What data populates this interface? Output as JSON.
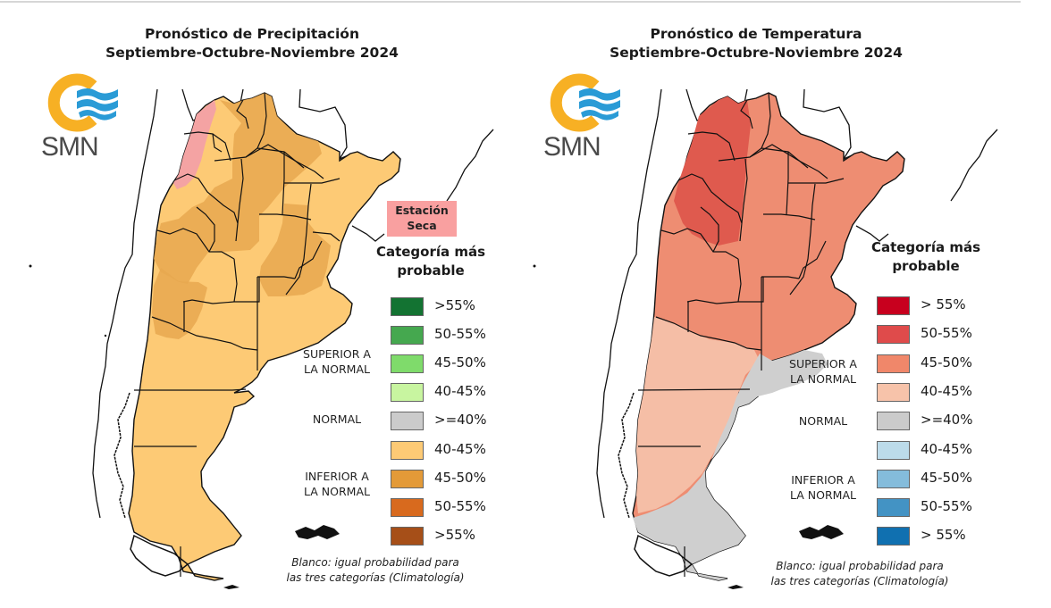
{
  "precipitation": {
    "title_line1": "Pronóstico de Precipitación",
    "title_line2": "Septiembre-Octubre-Noviembre 2024",
    "logo_text": "SMN",
    "dry_season_label_line1": "Estación",
    "dry_season_label_line2": "Seca",
    "dry_season_color": "#f9a0a0",
    "legend_title_line1": "Categoría más",
    "legend_title_line2": "probable",
    "category_above": "SUPERIOR A\nLA NORMAL",
    "category_above_line1": "SUPERIOR A",
    "category_above_line2": "LA NORMAL",
    "category_normal": "NORMAL",
    "category_below_line1": "INFERIOR A",
    "category_below_line2": "LA NORMAL",
    "legend": [
      {
        "label": ">55%",
        "color": "#137332",
        "category": "above"
      },
      {
        "label": "50-55%",
        "color": "#45a84f",
        "category": "above"
      },
      {
        "label": "45-50%",
        "color": "#7fdb6b",
        "category": "above"
      },
      {
        "label": "40-45%",
        "color": "#c8f5a0",
        "category": "above"
      },
      {
        "label": ">=40%",
        "color": "#cbcbcb",
        "category": "normal"
      },
      {
        "label": "40-45%",
        "color": "#fdca75",
        "category": "below"
      },
      {
        "label": "45-50%",
        "color": "#e39a38",
        "category": "below"
      },
      {
        "label": "50-55%",
        "color": "#d86a1e",
        "category": "below"
      },
      {
        "label": ">55%",
        "color": "#a64f18",
        "category": "below"
      }
    ],
    "note_line1": "Blanco: igual probabilidad para",
    "note_line2": "las tres categorías (Climatología)"
  },
  "temperature": {
    "title_line1": "Pronóstico de Temperatura",
    "title_line2": "Septiembre-Octubre-Noviembre 2024",
    "logo_text": "SMN",
    "legend_title_line1": "Categoría más",
    "legend_title_line2": "probable",
    "category_above_line1": "SUPERIOR A",
    "category_above_line2": "LA NORMAL",
    "category_normal": "NORMAL",
    "category_below_line1": "INFERIOR A",
    "category_below_line2": "LA NORMAL",
    "legend": [
      {
        "label": "> 55%",
        "color": "#c8001e",
        "category": "above"
      },
      {
        "label": "50-55%",
        "color": "#df4b4b",
        "category": "above"
      },
      {
        "label": "45-50%",
        "color": "#f0876a",
        "category": "above"
      },
      {
        "label": "40-45%",
        "color": "#f7c3aa",
        "category": "above"
      },
      {
        "label": ">=40%",
        "color": "#cbcbcb",
        "category": "normal"
      },
      {
        "label": "40-45%",
        "color": "#bcdbea",
        "category": "below"
      },
      {
        "label": "45-50%",
        "color": "#84bcdb",
        "category": "below"
      },
      {
        "label": "50-55%",
        "color": "#4393c4",
        "category": "below"
      },
      {
        "label": "> 55%",
        "color": "#1070b0",
        "category": "below"
      }
    ],
    "note_line1": "Blanco: igual probabilidad para",
    "note_line2": "las tres categorías (Climatología)"
  },
  "logo_colors": {
    "ring": "#f7b024",
    "waves": "#2a9bd6",
    "text": "#4a4a4a"
  }
}
